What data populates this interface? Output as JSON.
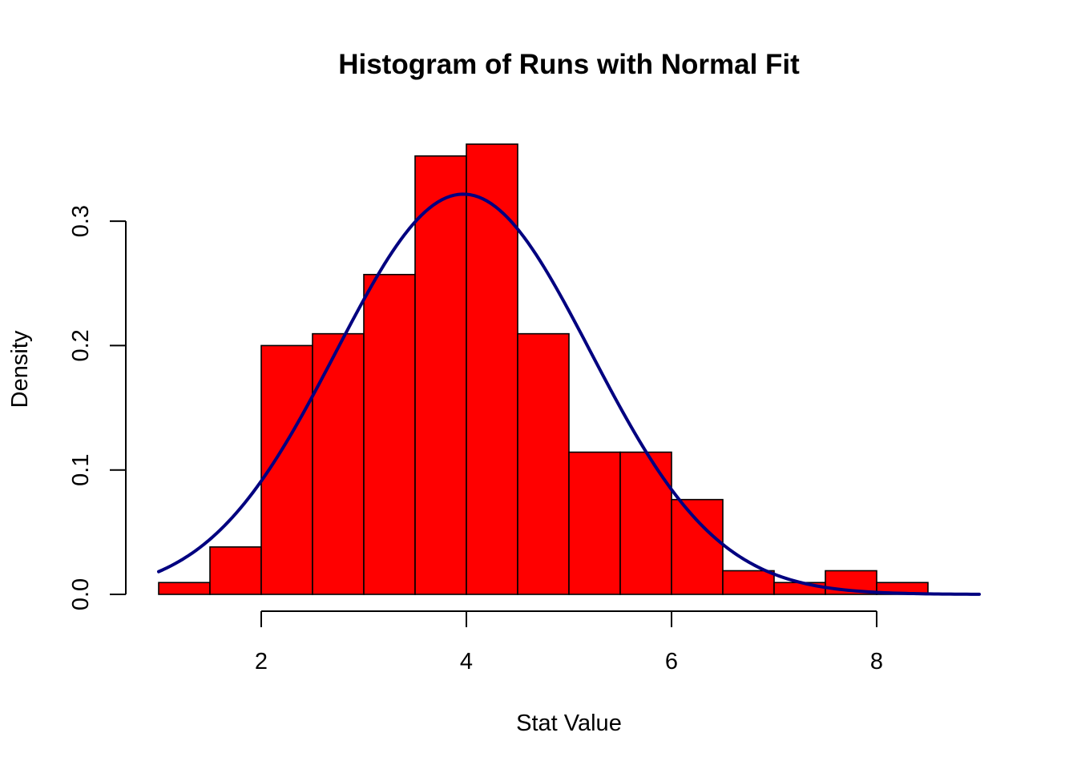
{
  "chart_data": {
    "type": "bar",
    "title": "Histogram of Runs with Normal Fit",
    "xlabel": "Stat Value",
    "ylabel": "Density",
    "bins": [
      {
        "x0": 1.0,
        "x1": 1.5,
        "density": 0.0095
      },
      {
        "x0": 1.5,
        "x1": 2.0,
        "density": 0.0381
      },
      {
        "x0": 2.0,
        "x1": 2.5,
        "density": 0.2
      },
      {
        "x0": 2.5,
        "x1": 3.0,
        "density": 0.2095
      },
      {
        "x0": 3.0,
        "x1": 3.5,
        "density": 0.2571
      },
      {
        "x0": 3.5,
        "x1": 4.0,
        "density": 0.3524
      },
      {
        "x0": 4.0,
        "x1": 4.5,
        "density": 0.3619
      },
      {
        "x0": 4.5,
        "x1": 5.0,
        "density": 0.2095
      },
      {
        "x0": 5.0,
        "x1": 5.5,
        "density": 0.1143
      },
      {
        "x0": 5.5,
        "x1": 6.0,
        "density": 0.1143
      },
      {
        "x0": 6.0,
        "x1": 6.5,
        "density": 0.0762
      },
      {
        "x0": 6.5,
        "x1": 7.0,
        "density": 0.019
      },
      {
        "x0": 7.0,
        "x1": 7.5,
        "density": 0.0095
      },
      {
        "x0": 7.5,
        "x1": 8.0,
        "density": 0.019
      },
      {
        "x0": 8.0,
        "x1": 8.5,
        "density": 0.0095
      }
    ],
    "normal_fit": {
      "mean": 3.97,
      "sd": 1.24,
      "x_range": [
        1.0,
        9.0
      ]
    },
    "x_ticks": [
      2,
      4,
      6,
      8
    ],
    "x_tick_labels": [
      "2",
      "4",
      "6",
      "8"
    ],
    "y_ticks": [
      0.0,
      0.1,
      0.2,
      0.3
    ],
    "y_tick_labels": [
      "0.0",
      "0.1",
      "0.2",
      "0.3"
    ],
    "xlim": [
      1.0,
      9.0
    ],
    "ylim": [
      0,
      0.362
    ],
    "grid": false,
    "legend": "none",
    "colors": {
      "bar_fill": "#ff0000",
      "bar_border": "#000000",
      "curve": "#000080",
      "background": "#ffffff"
    }
  }
}
